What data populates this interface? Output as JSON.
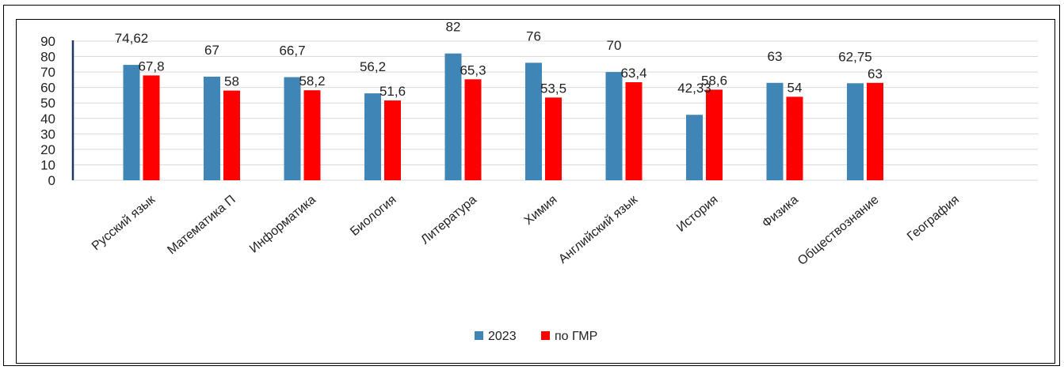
{
  "chart_data": {
    "type": "bar",
    "categories": [
      "Русский язык",
      "Математика П",
      "Информатика",
      "Биология",
      "Литература",
      "Химия",
      "Английский язык",
      "История",
      "Физика",
      "Обществознание",
      "География"
    ],
    "series": [
      {
        "name": "2023",
        "color": "#3f86b6",
        "values": [
          74.62,
          67,
          66.7,
          56.2,
          82,
          76,
          70,
          42.33,
          63,
          62.75,
          null
        ],
        "labels": [
          "74,62",
          "67",
          "66,7",
          "56,2",
          "82",
          "76",
          "70",
          "42,33",
          "63",
          "62,75",
          ""
        ]
      },
      {
        "name": "по ГМР",
        "color": "#ff0000",
        "values": [
          67.8,
          58,
          58.2,
          51.6,
          65.3,
          53.5,
          63.4,
          58.6,
          54,
          63,
          null
        ],
        "labels": [
          "67,8",
          "58",
          "58,2",
          "51,6",
          "65,3",
          "53,5",
          "63,4",
          "58,6",
          "54",
          "63",
          ""
        ]
      }
    ],
    "yticks": [
      "0",
      "10",
      "20",
      "30",
      "40",
      "50",
      "60",
      "70",
      "80",
      "90"
    ],
    "ylim": [
      0,
      90
    ],
    "grid": true,
    "legend_position": "bottom"
  }
}
